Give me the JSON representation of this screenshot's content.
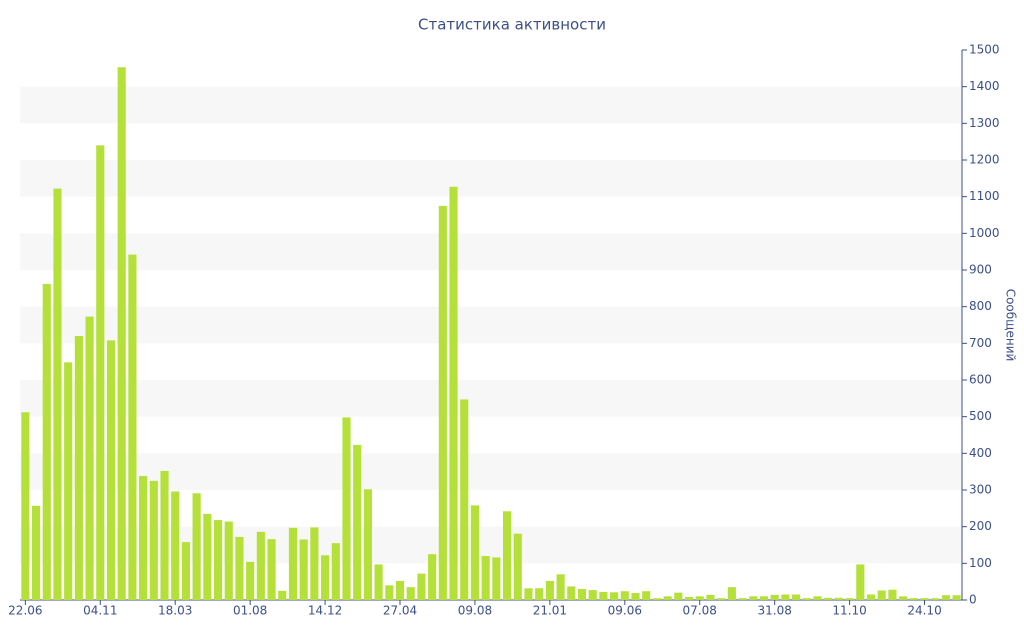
{
  "chart_data": {
    "type": "bar",
    "title": "Статистика активности",
    "y_axis_label": "Сообщений",
    "categories": [
      "22.06",
      null,
      null,
      null,
      null,
      null,
      null,
      "04.11",
      null,
      null,
      null,
      null,
      null,
      null,
      "18.03",
      null,
      null,
      null,
      null,
      null,
      null,
      "01.08",
      null,
      null,
      null,
      null,
      null,
      null,
      "14.12",
      null,
      null,
      null,
      null,
      null,
      null,
      "27.04",
      null,
      null,
      null,
      null,
      null,
      null,
      "09.08",
      null,
      null,
      null,
      null,
      null,
      null,
      "21.01",
      null,
      null,
      null,
      null,
      null,
      null,
      "09.06",
      null,
      null,
      null,
      null,
      null,
      null,
      "07.08",
      null,
      null,
      null,
      null,
      null,
      null,
      "31.08",
      null,
      null,
      null,
      null,
      null,
      null,
      "11.10",
      null,
      null,
      null,
      null,
      null,
      null,
      "24.10",
      null,
      null,
      null
    ],
    "values": [
      512,
      257,
      862,
      1122,
      648,
      720,
      773,
      1240,
      708,
      1453,
      942,
      338,
      325,
      352,
      296,
      158,
      291,
      235,
      218,
      214,
      172,
      104,
      186,
      166,
      25,
      197,
      165,
      198,
      122,
      155,
      498,
      423,
      302,
      97,
      40,
      52,
      35,
      72,
      125,
      1075,
      1127,
      547,
      258,
      120,
      116,
      242,
      181,
      32,
      32,
      52,
      70,
      37,
      30,
      27,
      22,
      21,
      24,
      19,
      24,
      5,
      10,
      20,
      8,
      10,
      14,
      5,
      35,
      5,
      10,
      10,
      14,
      15,
      15,
      5,
      10,
      6,
      6,
      5,
      97,
      15,
      26,
      28,
      10,
      5,
      5,
      5,
      13,
      13
    ],
    "color": "#b5e03a",
    "ylim": [
      0,
      1500
    ],
    "yticks": [
      0,
      100,
      200,
      300,
      400,
      500,
      600,
      700,
      800,
      900,
      1000,
      1100,
      1200,
      1300,
      1400,
      1500
    ],
    "grid": true,
    "y_axis_side": "right"
  }
}
